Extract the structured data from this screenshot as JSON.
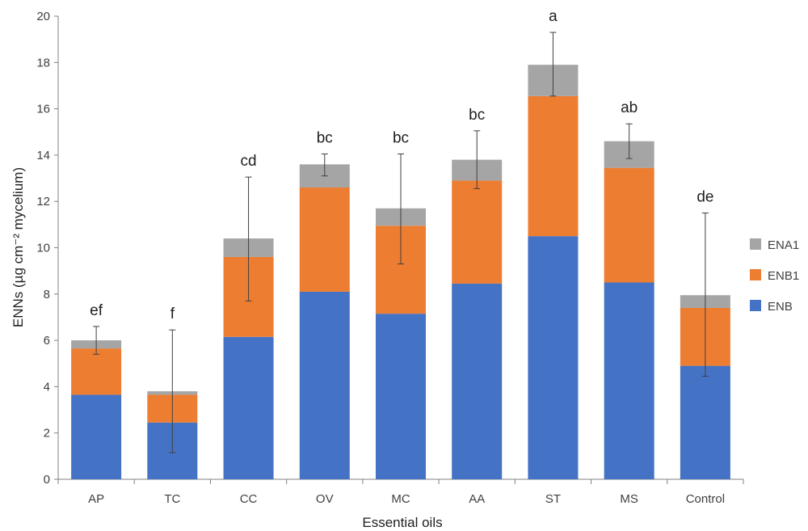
{
  "chart_data": {
    "type": "bar",
    "stacked": true,
    "categories": [
      "AP",
      "TC",
      "CC",
      "OV",
      "MC",
      "AA",
      "ST",
      "MS",
      "Control"
    ],
    "series": [
      {
        "name": "ENB",
        "color": "#4472C4",
        "values": [
          3.65,
          2.45,
          6.15,
          8.1,
          7.15,
          8.45,
          10.5,
          8.5,
          4.9
        ]
      },
      {
        "name": "ENB1",
        "color": "#ED7D31",
        "values": [
          2.0,
          1.2,
          3.45,
          4.5,
          3.8,
          4.45,
          6.05,
          4.95,
          2.5
        ]
      },
      {
        "name": "ENA1",
        "color": "#A5A5A5",
        "values": [
          0.35,
          0.15,
          0.8,
          1.0,
          0.75,
          0.9,
          1.35,
          1.15,
          0.55
        ]
      }
    ],
    "error_bars": [
      {
        "low": 5.4,
        "high": 6.6
      },
      {
        "low": 1.15,
        "high": 6.45
      },
      {
        "low": 7.7,
        "high": 13.05
      },
      {
        "low": 13.1,
        "high": 14.05
      },
      {
        "low": 9.3,
        "high": 14.05
      },
      {
        "low": 12.55,
        "high": 15.05
      },
      {
        "low": 16.55,
        "high": 19.3
      },
      {
        "low": 13.85,
        "high": 15.35
      },
      {
        "low": 4.45,
        "high": 11.5
      }
    ],
    "significance_letters": [
      "ef",
      "f",
      "cd",
      "bc",
      "bc",
      "bc",
      "a",
      "ab",
      "de"
    ],
    "xlabel": "Essential oils",
    "ylabel": "ENNs (µg cm⁻² mycelium)",
    "ylim": [
      0,
      20
    ],
    "yticks": [
      0,
      2,
      4,
      6,
      8,
      10,
      12,
      14,
      16,
      18,
      20
    ],
    "legend_position": "right",
    "legend_order": [
      "ENA1",
      "ENB1",
      "ENB"
    ],
    "grid": false
  }
}
